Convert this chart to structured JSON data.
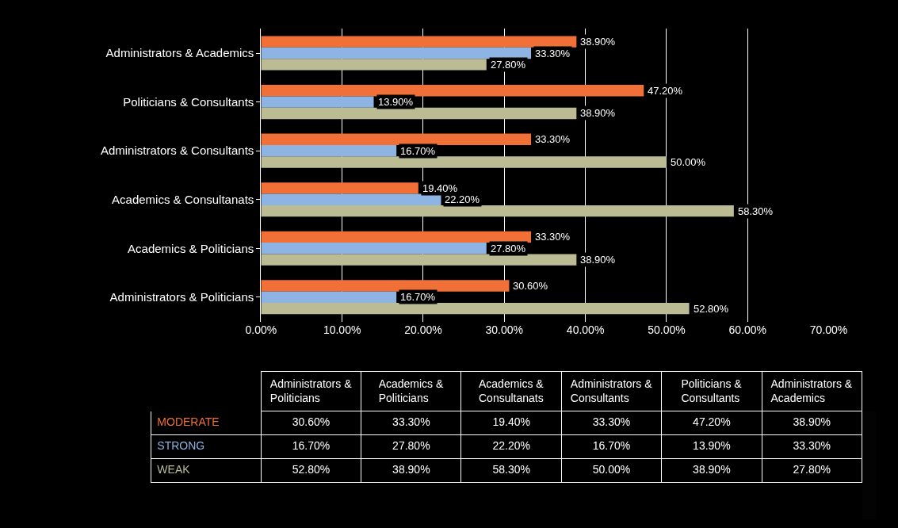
{
  "chart_data": {
    "type": "bar",
    "orientation": "horizontal",
    "categories": [
      "Administrators & Academics",
      "Politicians & Consultants",
      "Administrators & Consultants",
      "Academics & Consultanats",
      "Academics & Politicians",
      "Administrators & Politicians"
    ],
    "series": [
      {
        "name": "MODERATE",
        "color": "#f07038",
        "values": [
          38.9,
          47.2,
          33.3,
          19.4,
          33.3,
          30.6
        ],
        "value_labels": [
          "38.90%",
          "47.20%",
          "33.30%",
          "19.40%",
          "33.30%",
          "30.60%"
        ]
      },
      {
        "name": "STRONG",
        "color": "#8db4e2",
        "values": [
          33.3,
          13.9,
          16.7,
          22.2,
          27.8,
          16.7
        ],
        "value_labels": [
          "33.30%",
          "13.90%",
          "16.70%",
          "22.20%",
          "27.80%",
          "16.70%"
        ]
      },
      {
        "name": "WEAK",
        "color": "#bcbc94",
        "values": [
          27.8,
          38.9,
          50.0,
          58.3,
          38.9,
          52.8
        ],
        "value_labels": [
          "27.80%",
          "38.90%",
          "50.00%",
          "58.30%",
          "38.90%",
          "52.80%"
        ]
      }
    ],
    "xlim": [
      0,
      70
    ],
    "xticks": [
      {
        "value": 0,
        "label": "0.00%"
      },
      {
        "value": 10,
        "label": "10.00%"
      },
      {
        "value": 20,
        "label": "20.00%"
      },
      {
        "value": 30,
        "label": "30.00%"
      },
      {
        "value": 40,
        "label": "40.00%"
      },
      {
        "value": 50,
        "label": "50.00%"
      },
      {
        "value": 60,
        "label": "60.00%"
      },
      {
        "value": 70,
        "label": "70.00%"
      }
    ],
    "grid": "x",
    "legend": false
  }
}
